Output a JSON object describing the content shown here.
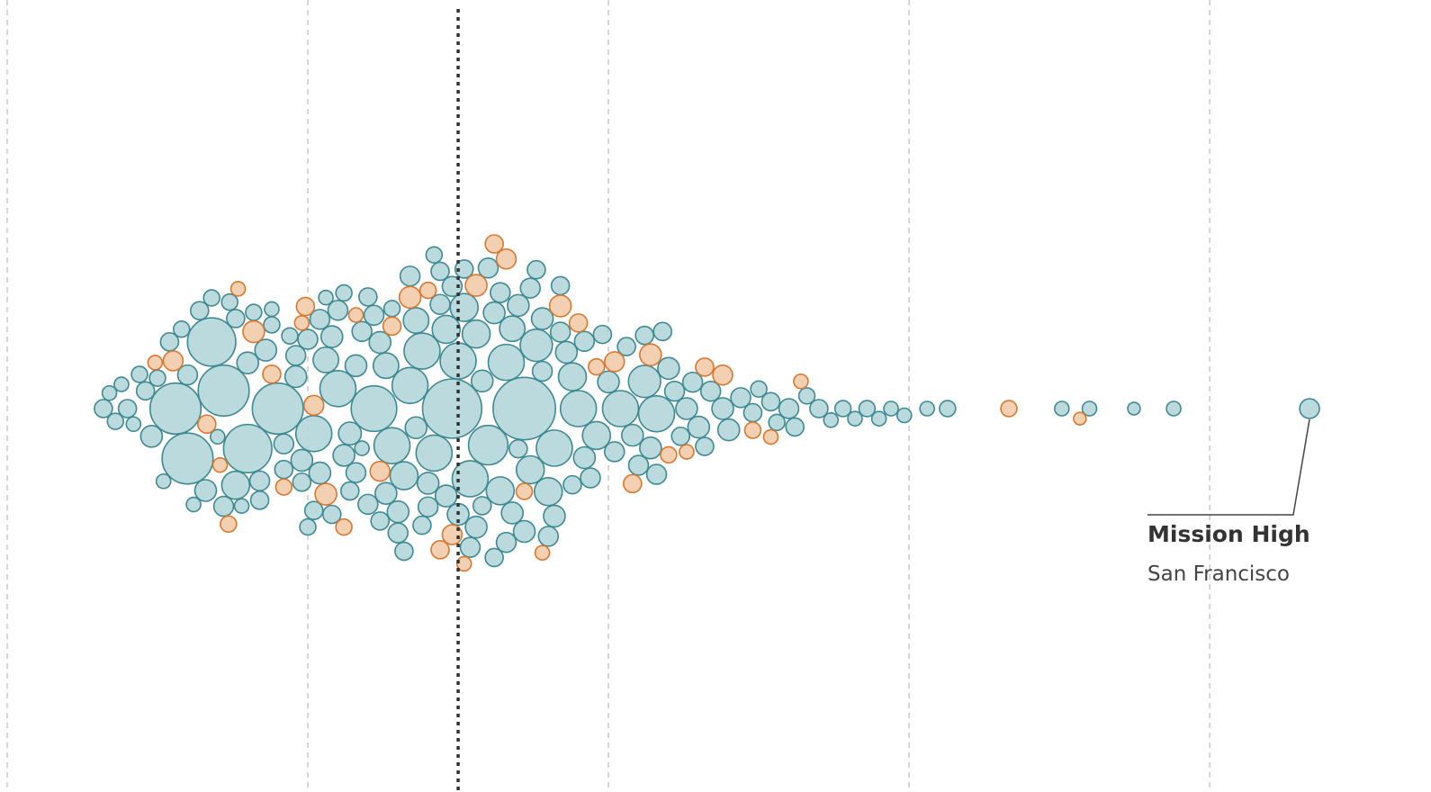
{
  "chart_data": {
    "type": "beeswarm",
    "xlim": [
      0,
      118.4
    ],
    "xticks": [
      0,
      25,
      50,
      75,
      100
    ],
    "grid": true,
    "reference_line": 37.5,
    "annotation": {
      "label": "Mission High",
      "sublabel": "San Francisco"
    },
    "series": [
      {
        "color": "#3e8a92",
        "values": [
          8,
          8.5,
          9,
          9.5,
          10,
          10.5,
          11,
          11.5,
          12,
          12.5,
          13,
          13.5,
          14,
          14.5,
          15,
          15,
          15.5,
          16,
          16.5,
          17,
          17,
          17.5,
          18,
          18,
          18.5,
          19,
          19,
          19.5,
          20,
          20,
          20.5,
          21,
          21,
          21.5,
          22,
          22,
          22.5,
          23,
          23,
          23.5,
          24,
          24,
          24.5,
          24.5,
          25,
          25,
          25.5,
          25.5,
          26,
          26,
          26.5,
          26.5,
          27,
          27,
          27.5,
          27.5,
          28,
          28,
          28.5,
          28.5,
          29,
          29,
          29.5,
          29.5,
          30,
          30,
          30.5,
          30.5,
          31,
          31,
          31.5,
          31.5,
          32,
          32,
          32.5,
          32.5,
          33,
          33,
          33.5,
          33.5,
          34,
          34,
          34.5,
          34.5,
          35,
          35,
          35.5,
          35.5,
          36,
          36,
          36.5,
          36.5,
          37,
          37,
          37.5,
          37.5,
          38,
          38,
          38.5,
          38.5,
          39,
          39,
          39.5,
          39.5,
          40,
          40,
          40.5,
          40.5,
          41,
          41,
          41.5,
          41.5,
          42,
          42,
          42.5,
          42.5,
          43,
          43,
          43.5,
          43.5,
          44,
          44,
          44.5,
          44.5,
          45,
          45,
          45.5,
          45.5,
          46,
          46,
          46.5,
          47,
          47,
          47.5,
          48,
          48,
          48.5,
          49,
          49.5,
          50,
          50.5,
          51,
          51.5,
          52,
          52.5,
          53,
          53,
          53.5,
          54,
          54,
          54.5,
          55,
          55.5,
          56,
          56.5,
          57,
          57.5,
          58,
          58.5,
          59.5,
          60,
          61,
          62,
          62.5,
          63.5,
          64,
          65,
          65.5,
          66.5,
          67.5,
          68.5,
          69.5,
          70.5,
          71.5,
          72.5,
          73.5,
          74.6,
          76.5,
          78.2,
          87.7,
          90,
          93.7,
          97,
          108.3
        ],
        "sizes": [
          25,
          16,
          20,
          16,
          25,
          16,
          20,
          25,
          36,
          20,
          16,
          25,
          200,
          20,
          30,
          200,
          16,
          25,
          36,
          20,
          180,
          16,
          30,
          200,
          20,
          25,
          60,
          16,
          36,
          180,
          20,
          30,
          25,
          36,
          20,
          16,
          200,
          30,
          25,
          20,
          36,
          30,
          25,
          36,
          30,
          20,
          100,
          25,
          36,
          30,
          16,
          50,
          36,
          25,
          30,
          100,
          36,
          20,
          25,
          40,
          30,
          36,
          16,
          30,
          25,
          30,
          160,
          30,
          36,
          25,
          36,
          50,
          20,
          100,
          30,
          36,
          60,
          25,
          100,
          30,
          36,
          50,
          25,
          100,
          30,
          36,
          20,
          100,
          30,
          25,
          60,
          36,
          270,
          30,
          100,
          36,
          25,
          60,
          30,
          100,
          36,
          60,
          25,
          36,
          120,
          30,
          36,
          25,
          60,
          30,
          100,
          30,
          36,
          50,
          25,
          36,
          300,
          36,
          30,
          60,
          80,
          25,
          36,
          30,
          60,
          30,
          36,
          100,
          25,
          30,
          36,
          60,
          25,
          100,
          36,
          30,
          30,
          60,
          25,
          36,
          30,
          100,
          25,
          36,
          30,
          80,
          25,
          36,
          30,
          100,
          25,
          36,
          30,
          25,
          36,
          30,
          36,
          25,
          30,
          36,
          36,
          30,
          25,
          20,
          25,
          20,
          30,
          25,
          20,
          25,
          16,
          20,
          16,
          20,
          16,
          16,
          16,
          16,
          20,
          16,
          16,
          12,
          16,
          30
        ]
      },
      {
        "color": "#d9772f",
        "values": [
          12.3,
          13.8,
          16.6,
          17.7,
          18.4,
          19.2,
          20.5,
          22,
          23,
          24.5,
          25.5,
          24.8,
          26.5,
          28,
          29,
          31,
          32,
          33.5,
          35,
          36,
          37,
          38,
          39,
          40.5,
          41.5,
          43,
          44.5,
          46,
          47.5,
          49,
          50.5,
          52,
          53.5,
          55,
          56.5,
          58,
          59.5,
          62,
          63.5,
          66,
          83.3,
          89.2
        ],
        "sizes": [
          16,
          30,
          25,
          16,
          20,
          16,
          36,
          25,
          20,
          16,
          30,
          25,
          36,
          20,
          16,
          30,
          25,
          36,
          20,
          25,
          30,
          16,
          36,
          25,
          30,
          20,
          16,
          36,
          25,
          20,
          30,
          25,
          36,
          20,
          16,
          25,
          30,
          20,
          16,
          16,
          20,
          12
        ]
      }
    ]
  }
}
